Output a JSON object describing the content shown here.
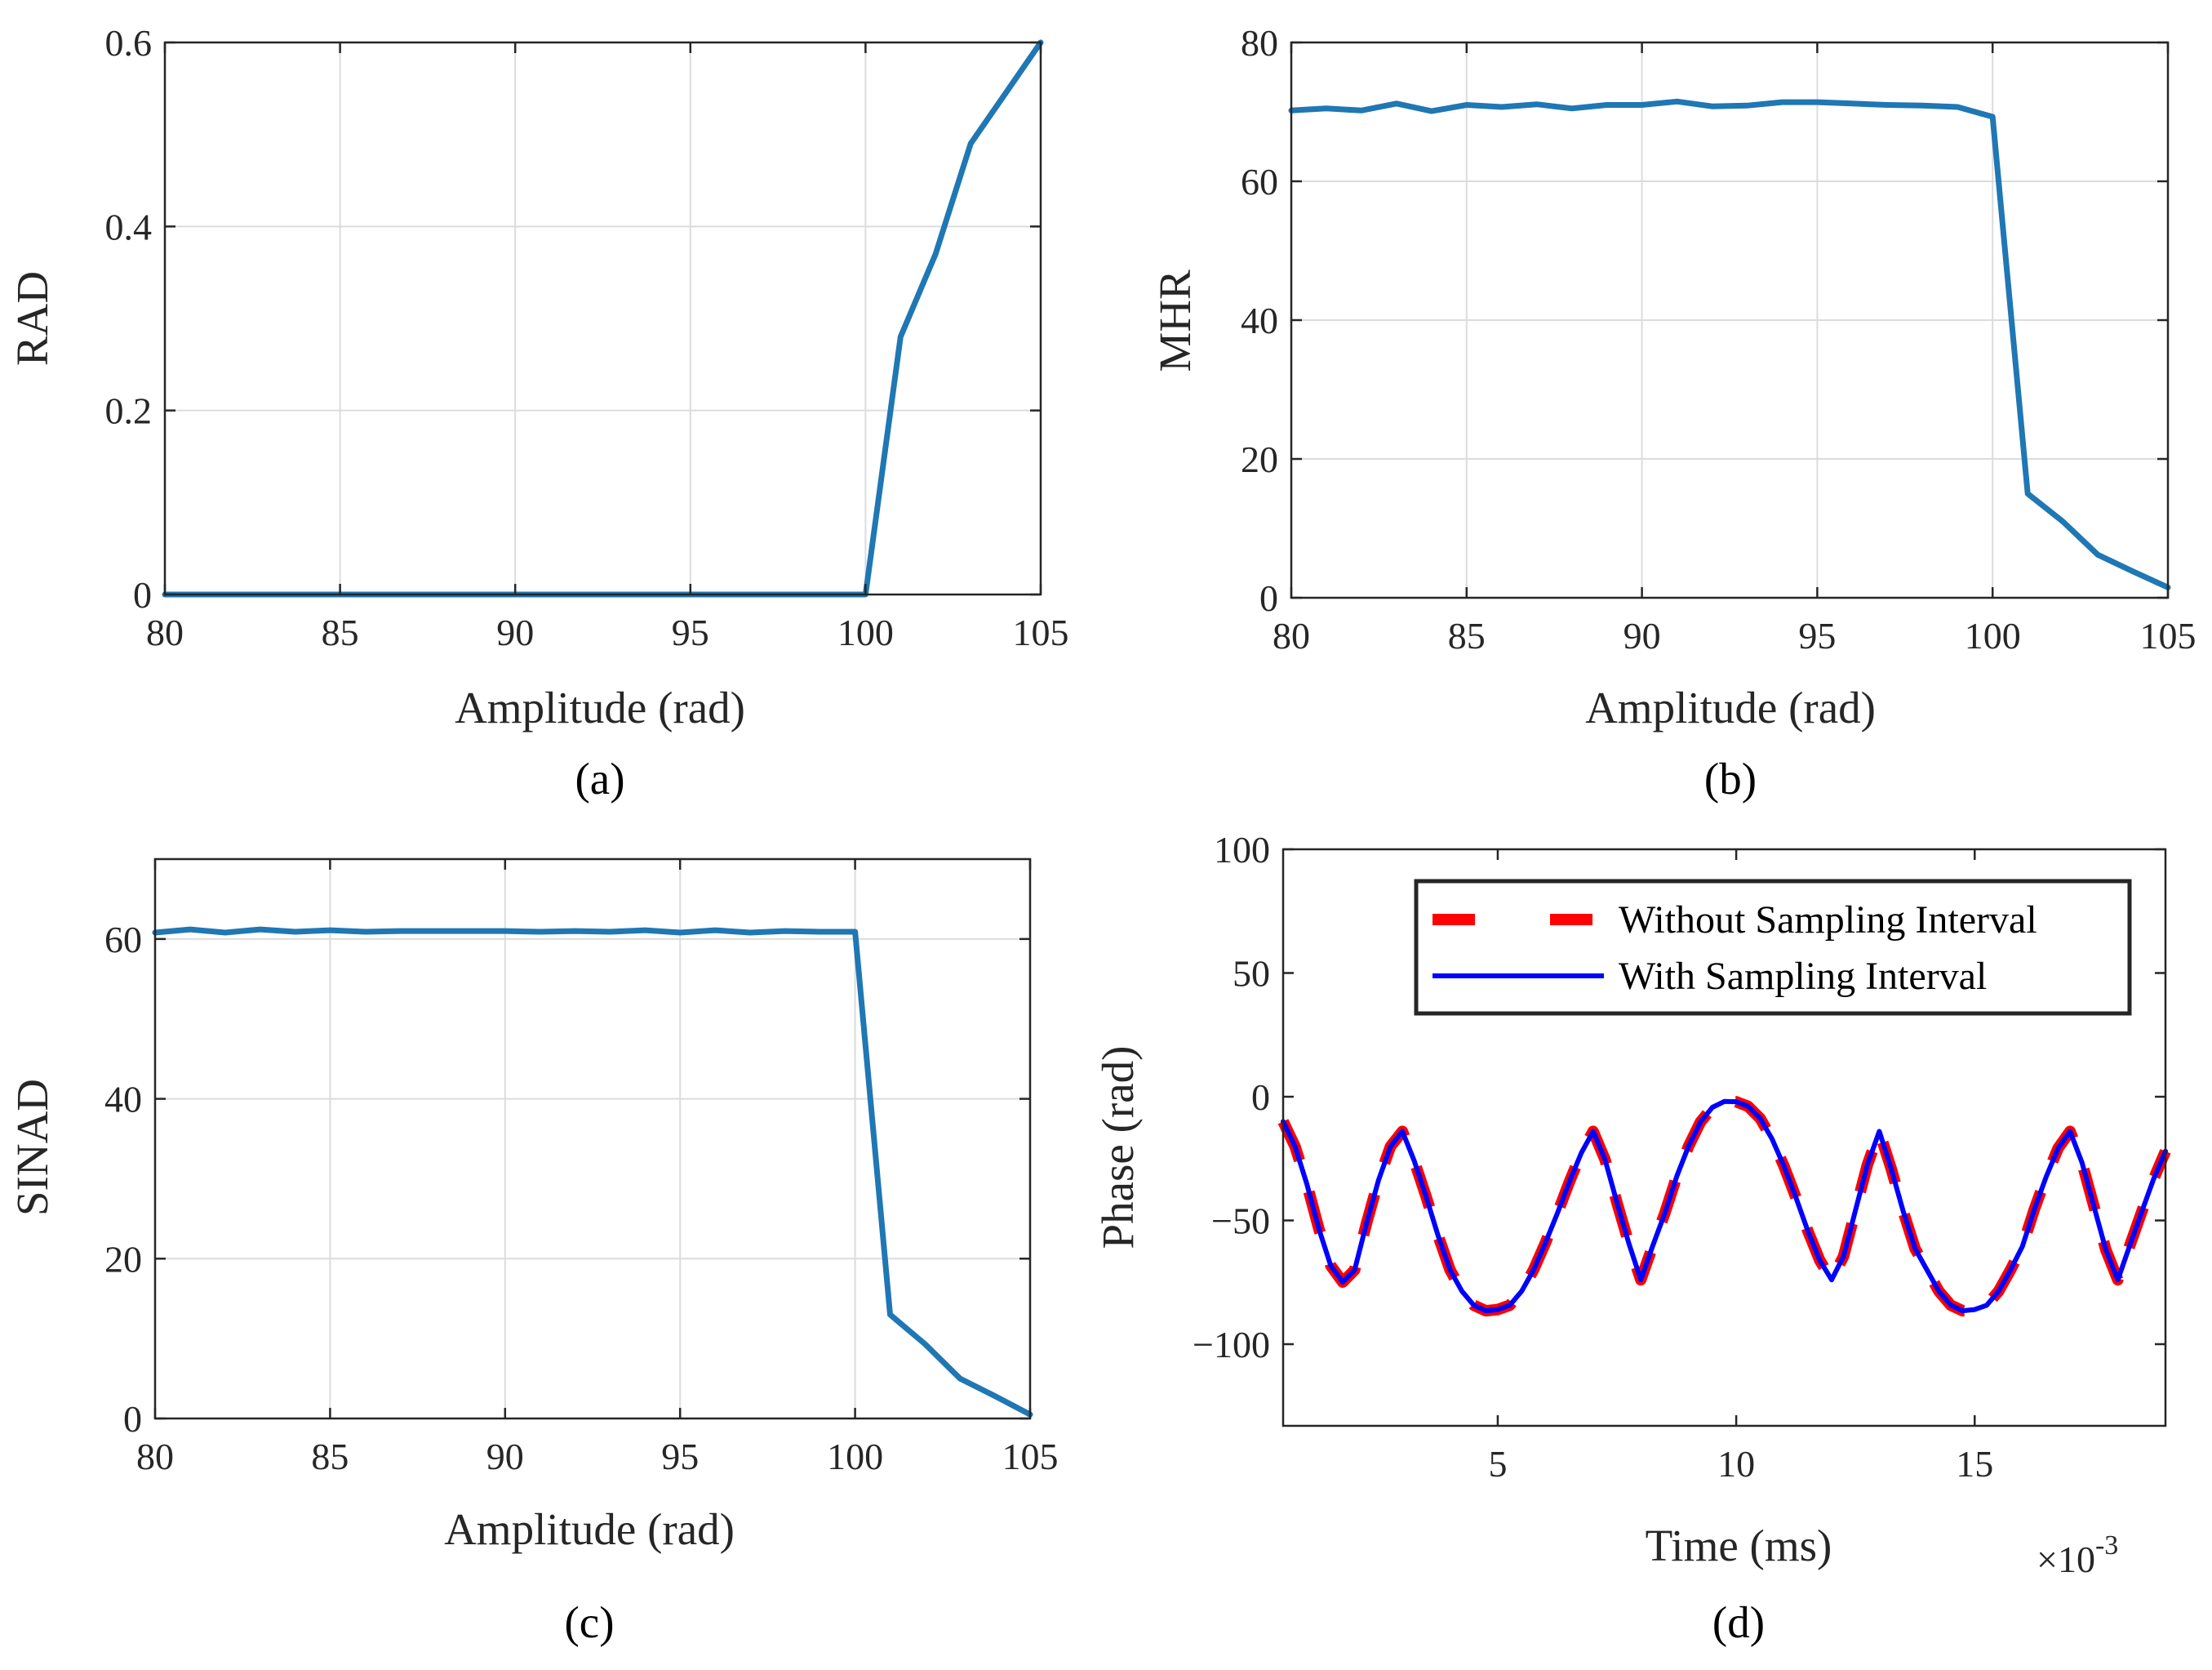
{
  "chart_data": [
    {
      "id": "a",
      "type": "line",
      "caption": "(a)",
      "xlabel": "Amplitude (rad)",
      "ylabel": "RAD",
      "xlim": [
        80,
        105
      ],
      "ylim": [
        0,
        0.6
      ],
      "xticks": [
        80,
        85,
        90,
        95,
        100,
        105
      ],
      "yticks": [
        0,
        0.2,
        0.4,
        0.6
      ],
      "xtick_labels": [
        "80",
        "85",
        "90",
        "95",
        "100",
        "105"
      ],
      "ytick_labels": [
        "0",
        "0.2",
        "0.4",
        "0.6"
      ],
      "grid": true,
      "series": [
        {
          "name": "RAD",
          "color": "#1f77b4",
          "x": [
            80,
            81,
            82,
            83,
            84,
            85,
            86,
            87,
            88,
            89,
            90,
            91,
            92,
            93,
            94,
            95,
            96,
            97,
            98,
            99,
            100,
            101,
            102,
            103,
            104,
            105
          ],
          "y": [
            0,
            0,
            0,
            0,
            0,
            0,
            0,
            0,
            0,
            0,
            0,
            0,
            0,
            0,
            0,
            0,
            0,
            0,
            0,
            0,
            0,
            0.28,
            0.37,
            0.49,
            0.545,
            0.6
          ]
        }
      ]
    },
    {
      "id": "b",
      "type": "line",
      "caption": "(b)",
      "xlabel": "Amplitude (rad)",
      "ylabel": "MHR",
      "xlim": [
        80,
        105
      ],
      "ylim": [
        0,
        80
      ],
      "xticks": [
        80,
        85,
        90,
        95,
        100,
        105
      ],
      "yticks": [
        0,
        20,
        40,
        60,
        80
      ],
      "xtick_labels": [
        "80",
        "85",
        "90",
        "95",
        "100",
        "105"
      ],
      "ytick_labels": [
        "0",
        "20",
        "40",
        "60",
        "80"
      ],
      "grid": true,
      "series": [
        {
          "name": "MHR",
          "color": "#1f77b4",
          "x": [
            80,
            81,
            82,
            83,
            84,
            85,
            86,
            87,
            88,
            89,
            90,
            91,
            92,
            93,
            94,
            95,
            96,
            97,
            98,
            99,
            100,
            101,
            102,
            103,
            104,
            105
          ],
          "y": [
            70.2,
            70.5,
            70.2,
            71.2,
            70.1,
            71.0,
            70.7,
            71.1,
            70.5,
            71.0,
            71.0,
            71.5,
            70.8,
            70.9,
            71.4,
            71.4,
            71.2,
            71.0,
            70.9,
            70.7,
            69.3,
            15.0,
            11.0,
            6.2,
            3.8,
            1.5
          ]
        }
      ]
    },
    {
      "id": "c",
      "type": "line",
      "caption": "(c)",
      "xlabel": "Amplitude (rad)",
      "ylabel": "SINAD",
      "xlim": [
        80,
        105
      ],
      "ylim": [
        0,
        70
      ],
      "xticks": [
        80,
        85,
        90,
        95,
        100,
        105
      ],
      "yticks": [
        0,
        20,
        40,
        60
      ],
      "xtick_labels": [
        "80",
        "85",
        "90",
        "95",
        "100",
        "105"
      ],
      "ytick_labels": [
        "0",
        "20",
        "40",
        "60"
      ],
      "grid": true,
      "series": [
        {
          "name": "SINAD",
          "color": "#1f77b4",
          "x": [
            80,
            81,
            82,
            83,
            84,
            85,
            86,
            87,
            88,
            89,
            90,
            91,
            92,
            93,
            94,
            95,
            96,
            97,
            98,
            99,
            100,
            101,
            102,
            103,
            104,
            105
          ],
          "y": [
            60.8,
            61.2,
            60.8,
            61.2,
            60.9,
            61.1,
            60.9,
            61.0,
            61.0,
            61.0,
            61.0,
            60.9,
            61.0,
            60.9,
            61.1,
            60.8,
            61.1,
            60.8,
            61.0,
            60.9,
            60.9,
            13.0,
            9.3,
            5.0,
            2.8,
            0.5
          ]
        }
      ]
    },
    {
      "id": "d",
      "type": "line",
      "caption": "(d)",
      "xlabel": "Time (ms)",
      "ylabel": "Phase (rad)",
      "x_exponent_base": "×10",
      "x_exponent_power": "-3",
      "xlim": [
        0.5,
        19
      ],
      "ylim": [
        -133,
        100
      ],
      "xticks": [
        5,
        10,
        15
      ],
      "yticks": [
        -100,
        -50,
        0,
        50,
        100
      ],
      "xtick_labels": [
        "5",
        "10",
        "15"
      ],
      "ytick_labels": [
        "−100",
        "−50",
        "0",
        "50",
        "100"
      ],
      "grid": false,
      "legend": {
        "position": "top-right",
        "entries": [
          "Without Sampling Interval",
          "With Sampling Interval"
        ]
      },
      "series": [
        {
          "name": "Without Sampling Interval",
          "color": "#ff0000",
          "style": "dashed",
          "x": [
            0.5,
            0.75,
            1.0,
            1.25,
            1.5,
            1.75,
            2.0,
            2.25,
            2.5,
            2.75,
            3.0,
            3.25,
            3.5,
            3.75,
            4.0,
            4.25,
            4.5,
            4.75,
            5.0,
            5.25,
            5.5,
            5.75,
            6.0,
            6.25,
            6.5,
            6.75,
            7.0,
            7.25,
            7.5,
            7.75,
            8.0,
            8.25,
            8.5,
            8.75,
            9.0,
            9.25,
            9.5,
            9.75,
            10.0,
            10.25,
            10.5,
            10.75,
            11.0,
            11.25,
            11.5,
            11.75,
            12.0,
            12.25,
            12.5,
            12.75,
            13.0,
            13.25,
            13.5,
            13.75,
            14.0,
            14.25,
            14.5,
            14.75,
            15.0,
            15.25,
            15.5,
            15.75,
            16.0,
            16.25,
            16.5,
            16.75,
            17.0,
            17.25,
            17.5,
            17.75,
            18.0,
            18.25,
            18.5,
            18.75,
            19.0
          ],
          "y": [
            -10.0,
            -20.1,
            -35.4,
            -53.4,
            -68.3,
            -74.9,
            -70.0,
            -51.0,
            -33.7,
            -20.1,
            -14.0,
            -26.0,
            -40.5,
            -56.2,
            -70.0,
            -78.6,
            -84.3,
            -86.5,
            -86.0,
            -84.3,
            -78.6,
            -70.0,
            -59.0,
            -47.1,
            -34.5,
            -22.8,
            -14.0,
            -25.4,
            -42.8,
            -59.3,
            -74.0,
            -60.2,
            -47.2,
            -32.3,
            -20.0,
            -10.2,
            -4.3,
            -1.9,
            -2.0,
            -3.9,
            -8.7,
            -17.0,
            -28.0,
            -40.6,
            -54.2,
            -66.1,
            -74.0,
            -64.5,
            -45.9,
            -27.5,
            -14.0,
            -29.1,
            -46.2,
            -61.4,
            -70.0,
            -78.6,
            -84.3,
            -86.5,
            -86.0,
            -84.3,
            -78.6,
            -70.0,
            -60.5,
            -45.5,
            -32.3,
            -20.8,
            -14.0,
            -26.6,
            -44.4,
            -61.9,
            -74.0,
            -60.2,
            -46.6,
            -33.3,
            -22.0
          ]
        },
        {
          "name": "With Sampling Interval",
          "color": "#0000ff",
          "style": "solid",
          "x": [
            0.5,
            0.75,
            1.0,
            1.25,
            1.5,
            1.75,
            2.0,
            2.25,
            2.5,
            2.75,
            3.0,
            3.25,
            3.5,
            3.75,
            4.0,
            4.25,
            4.5,
            4.75,
            5.0,
            5.25,
            5.5,
            5.75,
            6.0,
            6.25,
            6.5,
            6.75,
            7.0,
            7.25,
            7.5,
            7.75,
            8.0,
            8.25,
            8.5,
            8.75,
            9.0,
            9.25,
            9.5,
            9.75,
            10.0,
            10.25,
            10.5,
            10.75,
            11.0,
            11.25,
            11.5,
            11.75,
            12.0,
            12.25,
            12.5,
            12.75,
            13.0,
            13.25,
            13.5,
            13.75,
            14.0,
            14.25,
            14.5,
            14.75,
            15.0,
            15.25,
            15.5,
            15.75,
            16.0,
            16.25,
            16.5,
            16.75,
            17.0,
            17.25,
            17.5,
            17.75,
            18.0,
            18.25,
            18.5,
            18.75,
            19.0
          ],
          "y": [
            -10.0,
            -20.1,
            -35.4,
            -53.4,
            -68.3,
            -74.9,
            -70.0,
            -51.0,
            -33.7,
            -20.1,
            -14.0,
            -26.0,
            -40.5,
            -56.2,
            -70.0,
            -78.6,
            -84.3,
            -86.5,
            -86.0,
            -84.3,
            -78.6,
            -70.0,
            -59.0,
            -47.1,
            -34.5,
            -22.8,
            -14.0,
            -25.4,
            -42.8,
            -59.3,
            -74.0,
            -60.2,
            -47.2,
            -32.3,
            -20.0,
            -10.2,
            -4.3,
            -1.9,
            -2.0,
            -3.9,
            -8.7,
            -17.0,
            -28.0,
            -40.6,
            -54.2,
            -66.1,
            -74.0,
            -64.5,
            -45.9,
            -27.5,
            -14.0,
            -29.1,
            -46.2,
            -61.4,
            -70.0,
            -78.6,
            -84.3,
            -86.5,
            -86.0,
            -84.3,
            -78.6,
            -70.0,
            -60.5,
            -45.5,
            -32.3,
            -20.8,
            -14.0,
            -26.6,
            -44.4,
            -61.9,
            -74.0,
            -60.2,
            -46.6,
            -33.3,
            -22.0
          ]
        }
      ]
    }
  ]
}
